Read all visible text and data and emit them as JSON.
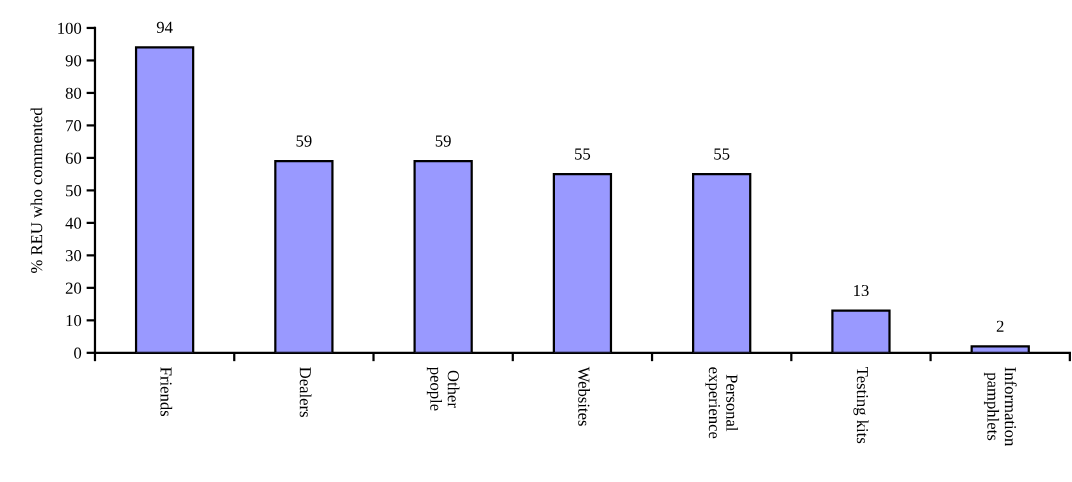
{
  "chart_data": {
    "type": "bar",
    "ylabel": "% REU who commented",
    "categories": [
      "Friends",
      "Dealers",
      "Other\npeople",
      "Websites",
      "Personal\nexperience",
      "Testing kits",
      "Information\npamphlets"
    ],
    "values": [
      94,
      59,
      59,
      55,
      55,
      13,
      2
    ],
    "color": "#9999ff",
    "ylim": [
      0,
      100
    ],
    "yticks": [
      0,
      10,
      20,
      30,
      40,
      50,
      60,
      70,
      80,
      90,
      100
    ],
    "grid": false,
    "legend": false,
    "data_labels": true
  }
}
